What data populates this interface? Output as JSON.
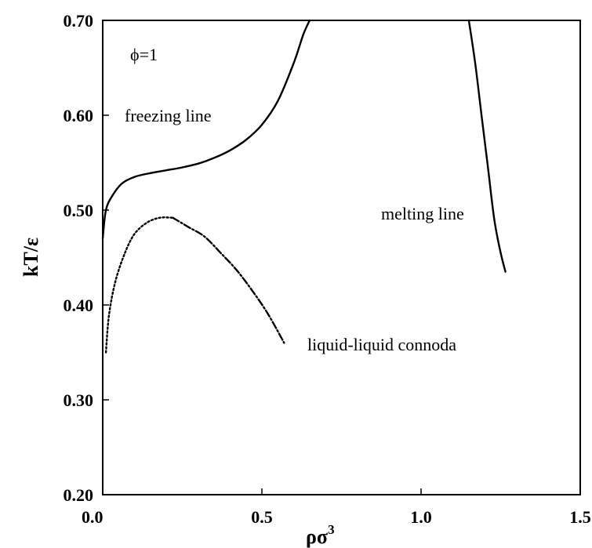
{
  "chart_data": {
    "type": "line",
    "title": "",
    "xlabel": "ρσ",
    "xlabel_sup": "3",
    "ylabel": "kT/ε",
    "xlim": [
      0.0,
      1.5
    ],
    "ylim": [
      0.2,
      0.7
    ],
    "x_ticks": [
      0.0,
      0.5,
      1.0,
      1.5
    ],
    "x_tick_labels": [
      "0.0",
      "0.5",
      "1.0",
      "1.5"
    ],
    "y_ticks": [
      0.2,
      0.3,
      0.4,
      0.5,
      0.6,
      0.7
    ],
    "y_tick_labels": [
      "0.20",
      "0.30",
      "0.40",
      "0.50",
      "0.60",
      "0.70"
    ],
    "grid": false,
    "annotations": {
      "phi": "ϕ=1",
      "freezing": "freezing line",
      "melting": "melting line",
      "connoda": "liquid-liquid connoda"
    },
    "series": [
      {
        "style": "solid",
        "points": [
          [
            0.0,
            0.47
          ],
          [
            0.01,
            0.5
          ],
          [
            0.03,
            0.515
          ],
          [
            0.06,
            0.528
          ],
          [
            0.1,
            0.535
          ],
          [
            0.15,
            0.539
          ],
          [
            0.2,
            0.542
          ],
          [
            0.25,
            0.545
          ],
          [
            0.3,
            0.549
          ],
          [
            0.35,
            0.555
          ],
          [
            0.4,
            0.563
          ],
          [
            0.45,
            0.574
          ],
          [
            0.5,
            0.59
          ],
          [
            0.55,
            0.615
          ],
          [
            0.6,
            0.655
          ],
          [
            0.63,
            0.685
          ],
          [
            0.65,
            0.7
          ]
        ]
      },
      {
        "style": "solid",
        "points": [
          [
            1.15,
            0.7
          ],
          [
            1.17,
            0.655
          ],
          [
            1.19,
            0.6
          ],
          [
            1.21,
            0.545
          ],
          [
            1.23,
            0.49
          ],
          [
            1.25,
            0.455
          ],
          [
            1.265,
            0.435
          ]
        ]
      },
      {
        "style": "dotted",
        "points": [
          [
            0.01,
            0.35
          ],
          [
            0.02,
            0.39
          ],
          [
            0.04,
            0.425
          ],
          [
            0.07,
            0.455
          ],
          [
            0.1,
            0.475
          ],
          [
            0.14,
            0.487
          ],
          [
            0.18,
            0.492
          ],
          [
            0.22,
            0.492
          ]
        ]
      },
      {
        "style": "dashed",
        "points": [
          [
            0.22,
            0.492
          ],
          [
            0.27,
            0.482
          ],
          [
            0.32,
            0.472
          ],
          [
            0.37,
            0.455
          ],
          [
            0.42,
            0.437
          ],
          [
            0.47,
            0.415
          ],
          [
            0.52,
            0.39
          ],
          [
            0.57,
            0.36
          ]
        ]
      }
    ]
  }
}
